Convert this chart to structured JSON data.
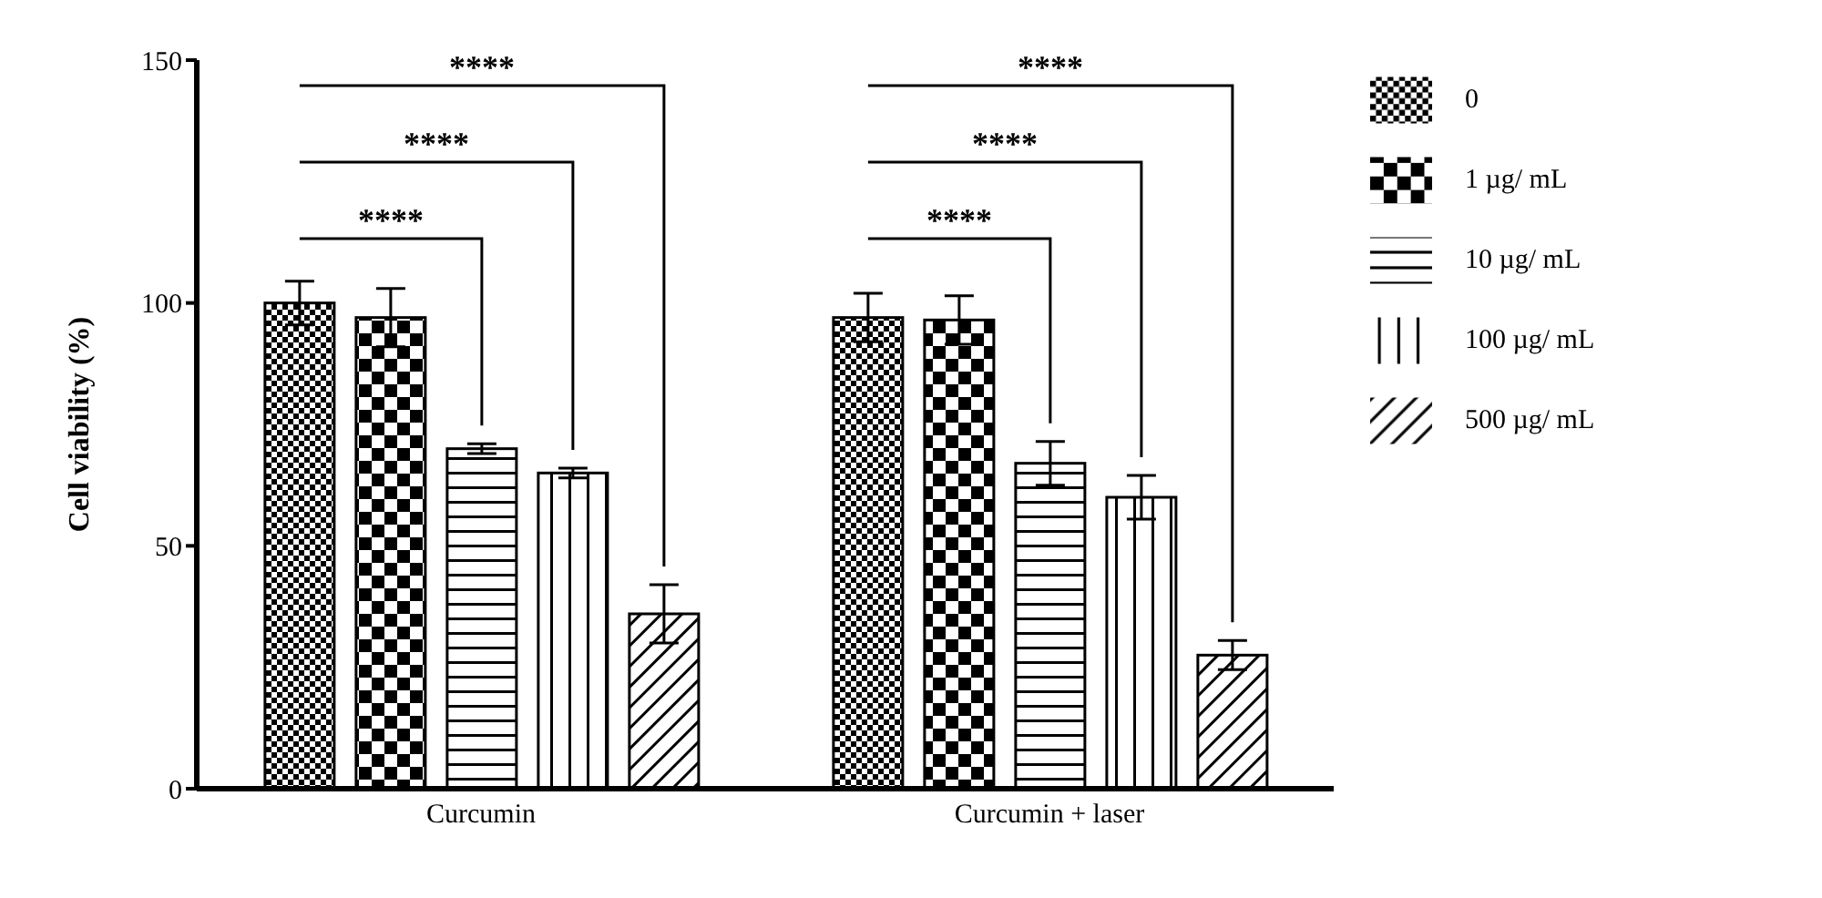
{
  "chart_data": {
    "type": "bar",
    "ylabel": "Cell viability (%)",
    "categories": [
      "Curcumin",
      "Curcumin + laser"
    ],
    "series": [
      {
        "name": "0",
        "color": "#000000",
        "values": [
          100,
          97
        ],
        "errors": [
          4.5,
          5
        ]
      },
      {
        "name": "1 µg/ mL",
        "color": "#000000",
        "values": [
          97,
          96.5
        ],
        "errors": [
          6,
          5
        ]
      },
      {
        "name": "10 µg/ mL",
        "color": "#000000",
        "values": [
          70,
          67
        ],
        "errors": [
          1,
          4.5
        ]
      },
      {
        "name": "100 µg/ mL",
        "color": "#000000",
        "values": [
          65,
          60
        ],
        "errors": [
          1,
          4.5
        ]
      },
      {
        "name": "500 µg/ mL",
        "color": "#000000",
        "values": [
          36,
          27.5
        ],
        "errors": [
          6,
          3
        ]
      }
    ],
    "annotations": [
      "****",
      "****",
      "****",
      "****",
      "****",
      "****"
    ],
    "ylim": [
      0,
      150
    ],
    "yticks": [
      0,
      50,
      100,
      150
    ],
    "grid": false,
    "legend": "top right"
  }
}
